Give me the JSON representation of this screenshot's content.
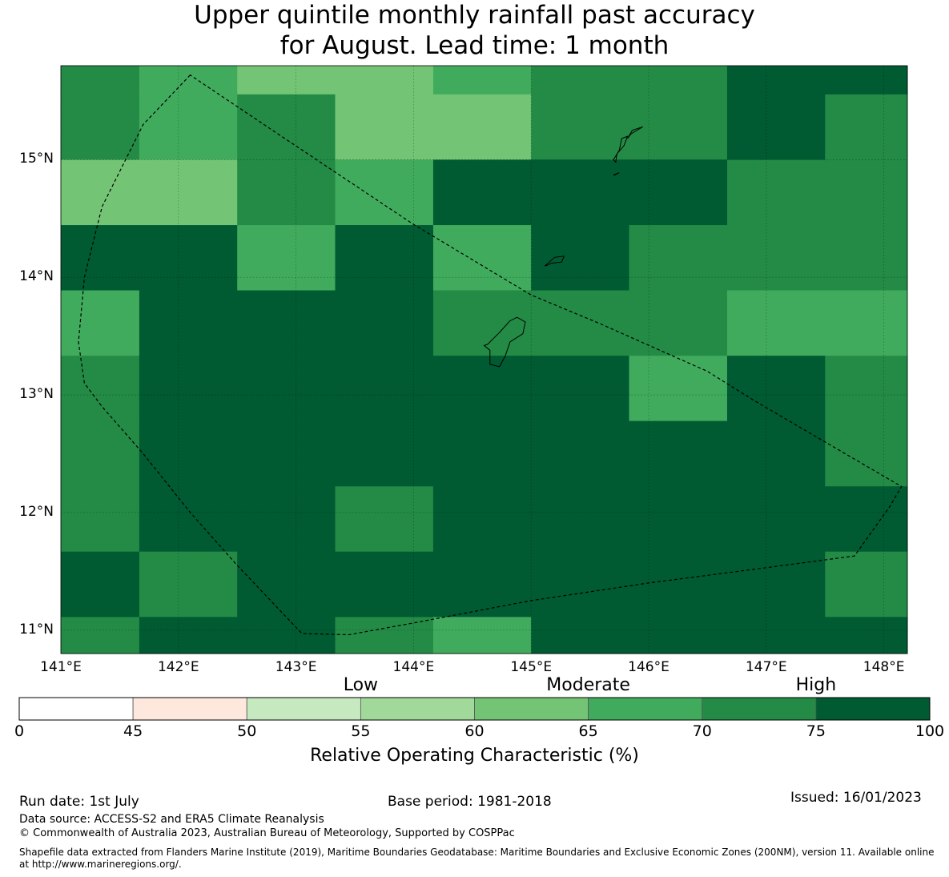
{
  "title": "Upper quintile monthly rainfall past accuracy\nfor August. Lead time: 1 month",
  "map": {
    "lon_range": [
      141.0,
      148.2
    ],
    "lat_range": [
      10.8,
      15.8
    ],
    "lon_labels": [
      "141°E",
      "142°E",
      "143°E",
      "144°E",
      "145°E",
      "146°E",
      "147°E",
      "148°E"
    ],
    "lon_values": [
      141,
      142,
      143,
      144,
      145,
      146,
      147,
      148
    ],
    "lat_labels": [
      "11°N",
      "12°N",
      "13°N",
      "14°N",
      "15°N"
    ],
    "lat_values": [
      11,
      12,
      13,
      14,
      15
    ],
    "grid_lon_edges": [
      141.0,
      141.667,
      142.5,
      143.333,
      144.167,
      145.0,
      145.833,
      146.667,
      147.5,
      148.2
    ],
    "grid_lat_edges": [
      15.8,
      15.556,
      15.0,
      14.444,
      13.889,
      13.333,
      12.778,
      12.222,
      11.667,
      11.111,
      10.8
    ],
    "cell_classes": [
      [
        7,
        6,
        5,
        5,
        6,
        7,
        7,
        8,
        8
      ],
      [
        7,
        6,
        7,
        5,
        5,
        7,
        7,
        8,
        7
      ],
      [
        5,
        5,
        7,
        6,
        8,
        8,
        8,
        7,
        7
      ],
      [
        8,
        8,
        6,
        8,
        6,
        8,
        7,
        7,
        7
      ],
      [
        6,
        8,
        8,
        8,
        7,
        7,
        7,
        6,
        6
      ],
      [
        7,
        8,
        8,
        8,
        8,
        8,
        6,
        8,
        7
      ],
      [
        7,
        8,
        8,
        8,
        8,
        8,
        8,
        8,
        7
      ],
      [
        7,
        8,
        8,
        7,
        8,
        8,
        8,
        8,
        8
      ],
      [
        8,
        7,
        8,
        8,
        8,
        8,
        8,
        8,
        7
      ],
      [
        7,
        8,
        8,
        7,
        6,
        8,
        8,
        8,
        8
      ]
    ],
    "eez_boundary": [
      [
        142.1,
        15.72
      ],
      [
        141.7,
        15.3
      ],
      [
        141.35,
        14.6
      ],
      [
        141.2,
        14.0
      ],
      [
        141.15,
        13.45
      ],
      [
        141.2,
        13.1
      ],
      [
        141.35,
        12.9
      ],
      [
        141.7,
        12.5
      ],
      [
        142.1,
        12.0
      ],
      [
        142.5,
        11.55
      ],
      [
        143.05,
        10.97
      ],
      [
        143.45,
        10.96
      ],
      [
        144.0,
        11.06
      ],
      [
        145.0,
        11.25
      ],
      [
        146.0,
        11.4
      ],
      [
        147.0,
        11.53
      ],
      [
        147.75,
        11.63
      ],
      [
        148.05,
        12.05
      ],
      [
        148.15,
        12.22
      ],
      [
        146.9,
        12.95
      ],
      [
        146.5,
        13.2
      ],
      [
        145.6,
        13.6
      ],
      [
        145.0,
        13.85
      ],
      [
        144.0,
        14.45
      ],
      [
        142.8,
        15.25
      ]
    ],
    "islands": [
      [
        [
          144.63,
          13.43
        ],
        [
          144.73,
          13.53
        ],
        [
          144.82,
          13.63
        ],
        [
          144.88,
          13.66
        ],
        [
          144.95,
          13.62
        ],
        [
          144.93,
          13.52
        ],
        [
          144.82,
          13.45
        ],
        [
          144.78,
          13.33
        ],
        [
          144.73,
          13.24
        ],
        [
          144.65,
          13.26
        ],
        [
          144.65,
          13.38
        ],
        [
          144.6,
          13.42
        ]
      ],
      [
        [
          145.12,
          14.1
        ],
        [
          145.2,
          14.17
        ],
        [
          145.28,
          14.18
        ],
        [
          145.26,
          14.13
        ],
        [
          145.17,
          14.12
        ],
        [
          145.13,
          14.1
        ]
      ],
      [
        [
          145.7,
          15.0
        ],
        [
          145.75,
          15.08
        ],
        [
          145.77,
          15.18
        ],
        [
          145.82,
          15.2
        ],
        [
          145.79,
          15.12
        ],
        [
          145.73,
          15.05
        ],
        [
          145.72,
          14.98
        ]
      ],
      [
        [
          145.71,
          14.87
        ],
        [
          145.75,
          14.89
        ],
        [
          145.7,
          14.87
        ]
      ],
      [
        [
          145.82,
          15.18
        ],
        [
          145.86,
          15.25
        ],
        [
          145.95,
          15.28
        ],
        [
          145.85,
          15.22
        ]
      ]
    ]
  },
  "colorbar": {
    "colors": [
      "#ffffff",
      "#fee8de",
      "#c7e9c0",
      "#a1d99b",
      "#74c476",
      "#41ab5d",
      "#238b45",
      "#005a32"
    ],
    "ticks": [
      "0",
      "45",
      "50",
      "55",
      "60",
      "65",
      "70",
      "75",
      "100"
    ],
    "categories": [
      {
        "label": "Low",
        "center_index": 3
      },
      {
        "label": "Moderate",
        "center_index": 5
      },
      {
        "label": "High",
        "center_index": 7
      }
    ],
    "title": "Relative Operating Characteristic (%)"
  },
  "footer": {
    "run_date": "Run date: 1st July",
    "base_period": "Base period: 1981-2018",
    "issued": "Issued: 16/01/2023",
    "data_source": "Data source: ACCESS-S2 and ERA5 Climate Reanalysis",
    "copyright": "© Commonwealth of Australia 2023, Australian Bureau of Meteorology, Supported by COSPPac",
    "shapefile": "Shapefile data extracted from Flanders Marine Institute (2019), Maritime Boundaries Geodatabase: Maritime Boundaries and Exclusive Economic Zones (200NM), version 11. Available online\nat http://www.marineregions.org/."
  }
}
